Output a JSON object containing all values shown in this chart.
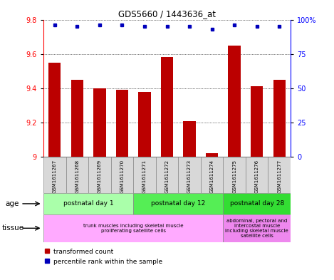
{
  "title": "GDS5660 / 1443636_at",
  "samples": [
    "GSM1611267",
    "GSM1611268",
    "GSM1611269",
    "GSM1611270",
    "GSM1611271",
    "GSM1611272",
    "GSM1611273",
    "GSM1611274",
    "GSM1611275",
    "GSM1611276",
    "GSM1611277"
  ],
  "transformed_count": [
    9.55,
    9.45,
    9.4,
    9.39,
    9.38,
    9.58,
    9.21,
    9.02,
    9.65,
    9.41,
    9.45
  ],
  "percentile_rank": [
    96,
    95,
    96,
    96,
    95,
    95,
    95,
    93,
    96,
    95,
    95
  ],
  "ylim_left": [
    9.0,
    9.8
  ],
  "ylim_right": [
    0,
    100
  ],
  "yticks_left": [
    9.0,
    9.2,
    9.4,
    9.6,
    9.8
  ],
  "ytick_labels_left": [
    "9",
    "9.2",
    "9.4",
    "9.6",
    "9.8"
  ],
  "yticks_right": [
    0,
    25,
    50,
    75,
    100
  ],
  "ytick_labels_right": [
    "0",
    "25",
    "50",
    "75",
    "100%"
  ],
  "bar_color": "#bb0000",
  "dot_color": "#0000bb",
  "grid_color": "#000000",
  "plot_bg_color": "#ffffff",
  "sample_bg_color": "#d8d8d8",
  "age_groups": [
    {
      "label": "postnatal day 1",
      "start": 0,
      "end": 4,
      "color": "#aaffaa"
    },
    {
      "label": "postnatal day 12",
      "start": 4,
      "end": 8,
      "color": "#55ee55"
    },
    {
      "label": "postnatal day 28",
      "start": 8,
      "end": 11,
      "color": "#33dd33"
    }
  ],
  "tissue_groups": [
    {
      "label": "trunk muscles including skeletal muscle\nproliferating satellite cells",
      "start": 0,
      "end": 8,
      "color": "#ffaaff"
    },
    {
      "label": "abdominal, pectoral and\nintercostal muscle\nincluding skeletal muscle\nsatellite cells",
      "start": 8,
      "end": 11,
      "color": "#ee88ee"
    }
  ],
  "age_label": "age",
  "tissue_label": "tissue",
  "legend_bar": "transformed count",
  "legend_dot": "percentile rank within the sample"
}
